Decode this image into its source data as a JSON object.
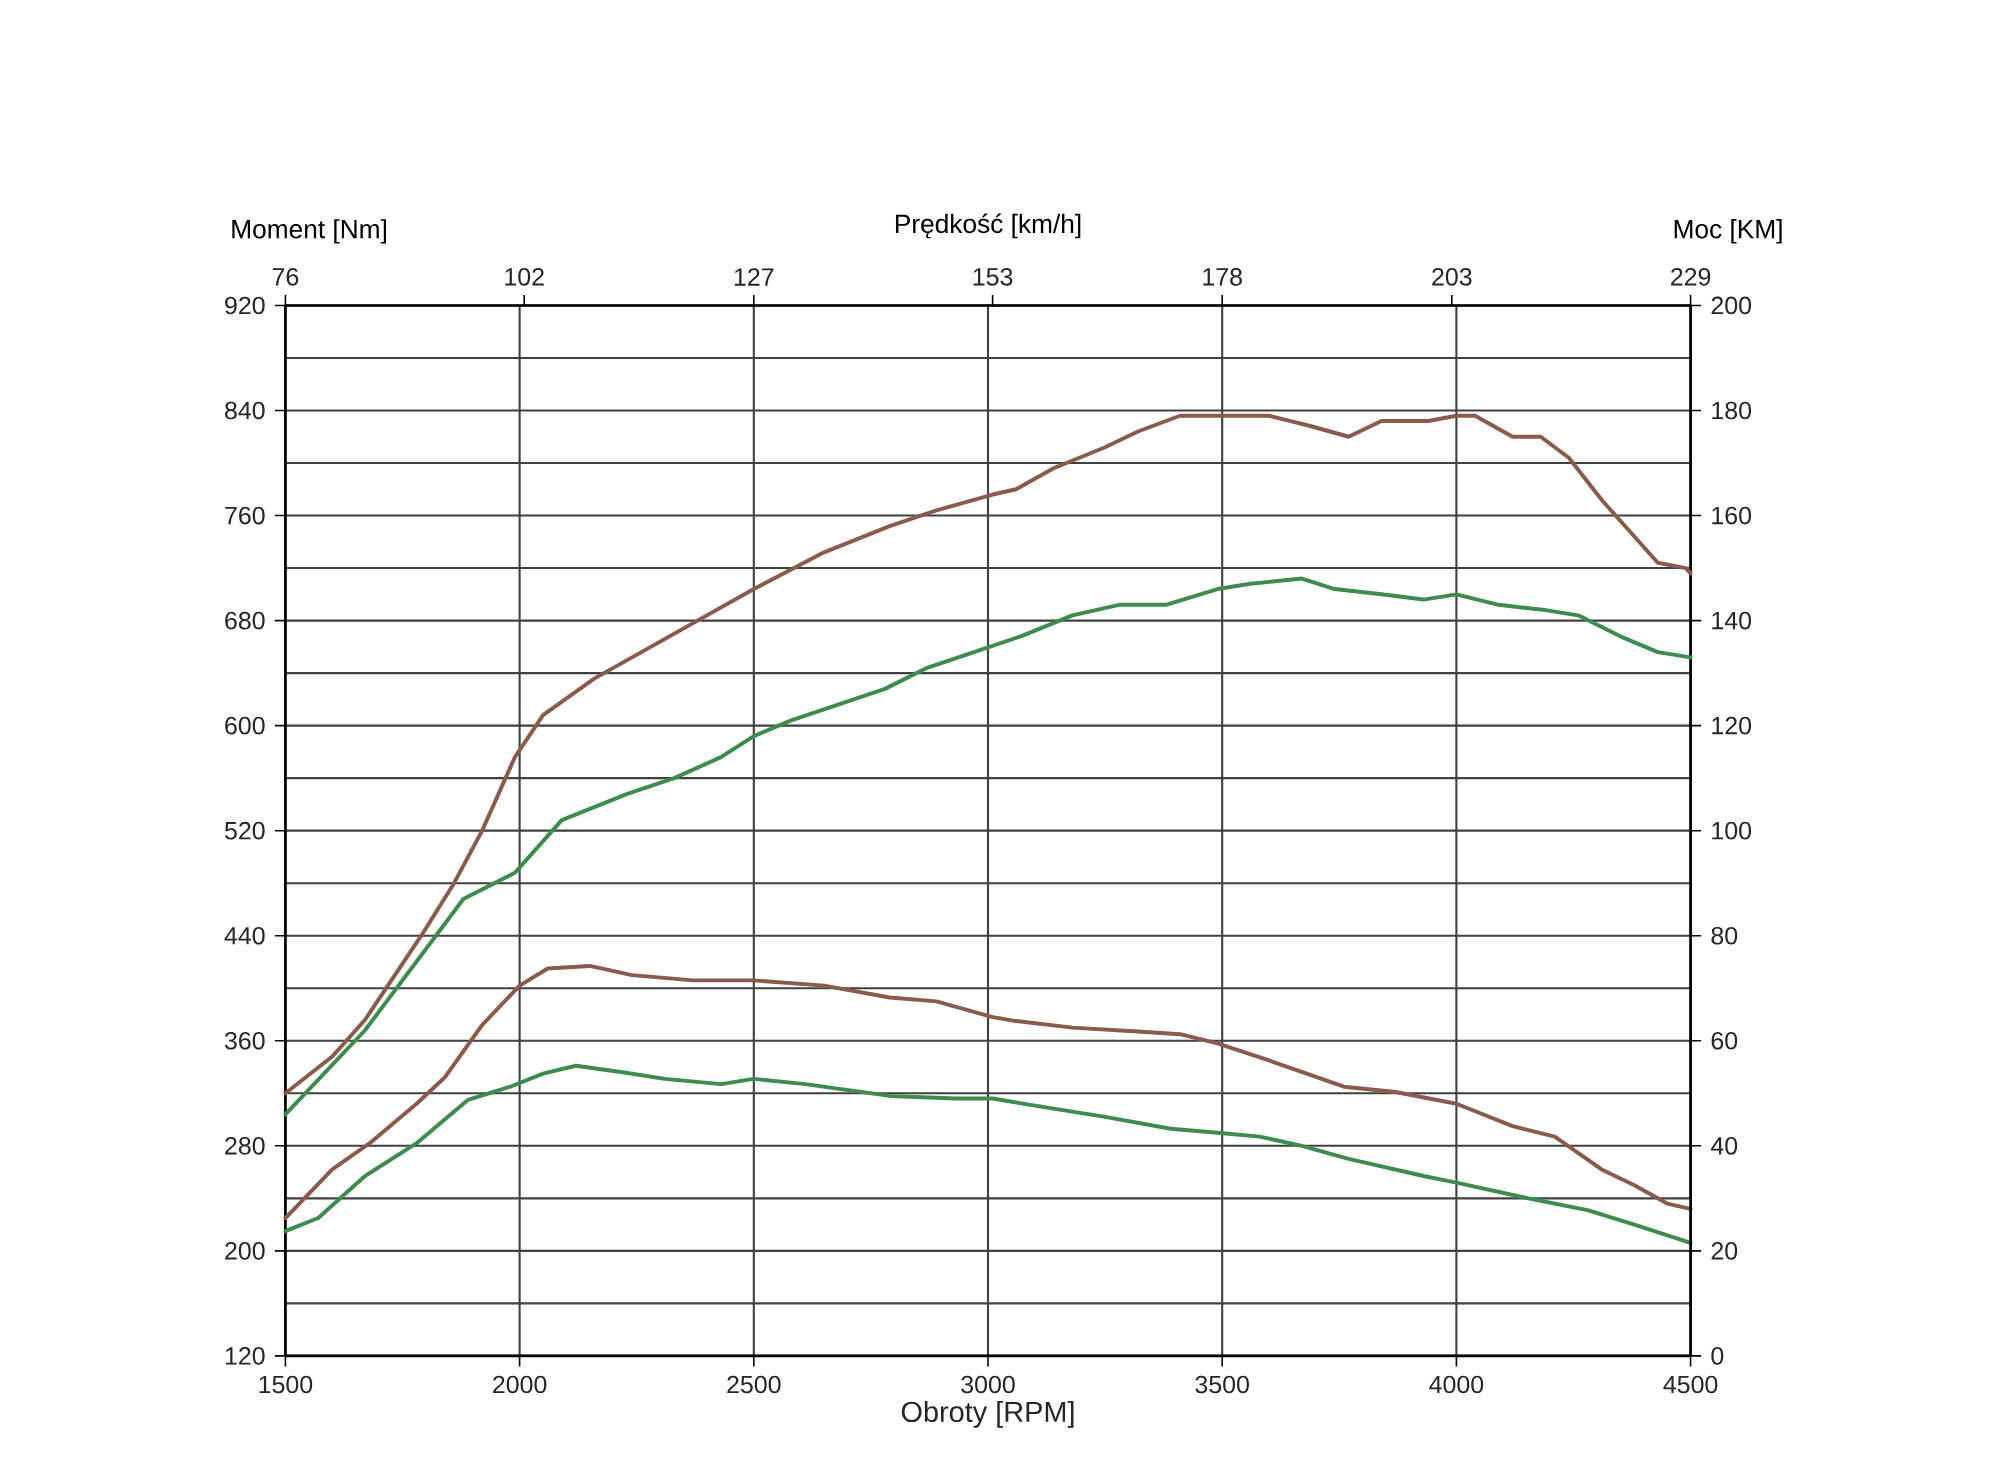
{
  "chart_data": {
    "type": "line",
    "xlabel": "Obroty [RPM]",
    "ylabel": "Moment [Nm]",
    "y2label": "Moc [KM]",
    "x2label": "Prędkość [km/h]",
    "xlim": [
      1500,
      4500
    ],
    "xticks": [
      1500,
      2000,
      2500,
      3000,
      3500,
      4000,
      4500
    ],
    "ylim": [
      120,
      920
    ],
    "yticks": [
      120,
      200,
      280,
      360,
      440,
      520,
      600,
      680,
      760,
      840,
      920
    ],
    "y2lim": [
      0,
      200
    ],
    "y2ticks": [
      0,
      20,
      40,
      60,
      80,
      100,
      120,
      140,
      160,
      180,
      200
    ],
    "x2lim": [
      76,
      229
    ],
    "x2ticks": [
      76,
      102,
      127,
      153,
      178,
      203,
      229
    ],
    "grid": true,
    "line_style": "solid",
    "series": [
      {
        "color": "#8a5a4c",
        "axis": "y2",
        "x": [
          1500,
          1600,
          1670,
          1790,
          1860,
          1920,
          1990,
          2050,
          2160,
          2300,
          2500,
          2650,
          2790,
          2890,
          3010,
          3060,
          3140,
          3250,
          3320,
          3410,
          3490,
          3600,
          3690,
          3770,
          3840,
          3940,
          4000,
          4040,
          4120,
          4180,
          4240,
          4310,
          4380,
          4430,
          4490,
          4500
        ],
        "values": [
          50,
          57,
          64,
          80,
          90,
          100,
          114,
          122,
          129,
          136,
          146,
          153,
          158,
          161,
          164,
          165,
          169,
          173,
          176,
          179,
          179,
          179,
          177,
          175,
          178,
          178,
          179,
          179,
          175,
          175,
          171,
          163,
          156,
          151,
          150,
          149
        ]
      },
      {
        "color": "#3d8b4e",
        "axis": "y2",
        "x": [
          1500,
          1670,
          1880,
          1990,
          2090,
          2230,
          2330,
          2430,
          2500,
          2580,
          2680,
          2780,
          2870,
          2970,
          3070,
          3180,
          3280,
          3380,
          3490,
          3560,
          3670,
          3740,
          3840,
          3930,
          4000,
          4090,
          4190,
          4260,
          4350,
          4430,
          4500
        ],
        "values": [
          46,
          62,
          87,
          92,
          102,
          107,
          110,
          114,
          118,
          121,
          124,
          127,
          131,
          134,
          137,
          141,
          143,
          143,
          146,
          147,
          148,
          146,
          145,
          144,
          145,
          143,
          142,
          141,
          137,
          134,
          133
        ]
      },
      {
        "color": "#8a5a4c",
        "x": [
          1500,
          1600,
          1680,
          1780,
          1840,
          1920,
          2000,
          2060,
          2150,
          2240,
          2370,
          2500,
          2650,
          2790,
          2890,
          3010,
          3060,
          3180,
          3320,
          3410,
          3490,
          3600,
          3760,
          3870,
          4000,
          4120,
          4210,
          4310,
          4380,
          4450,
          4500
        ],
        "values": [
          225,
          262,
          282,
          312,
          332,
          372,
          402,
          415,
          417,
          410,
          406,
          406,
          402,
          393,
          390,
          378,
          375,
          370,
          367,
          365,
          358,
          345,
          325,
          321,
          312,
          295,
          287,
          262,
          250,
          236,
          232
        ]
      },
      {
        "color": "#3d8b4e",
        "x": [
          1500,
          1570,
          1670,
          1780,
          1890,
          1980,
          2050,
          2120,
          2220,
          2310,
          2430,
          2500,
          2610,
          2790,
          2930,
          3010,
          3110,
          3250,
          3390,
          3490,
          3580,
          3670,
          3770,
          3930,
          4000,
          4140,
          4280,
          4380,
          4500
        ],
        "values": [
          215,
          225,
          257,
          282,
          315,
          325,
          335,
          341,
          336,
          331,
          327,
          331,
          327,
          318,
          316,
          316,
          310,
          302,
          293,
          290,
          287,
          280,
          270,
          257,
          252,
          241,
          231,
          220,
          206
        ]
      }
    ]
  }
}
